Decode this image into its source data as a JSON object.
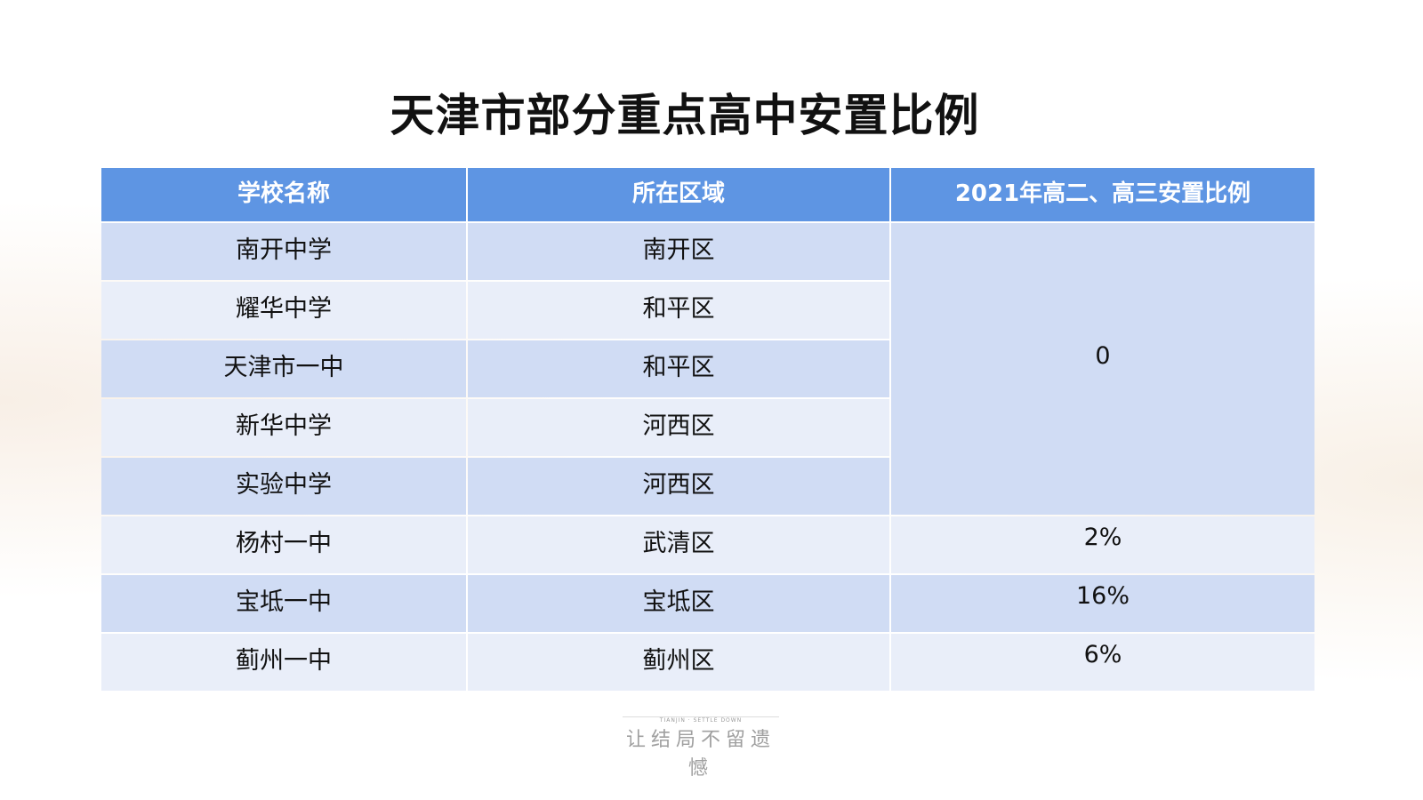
{
  "title": "天津市部分重点高中安置比例",
  "table": {
    "headers": [
      "学校名称",
      "所在区域",
      "2021年高二、高三安置比例"
    ],
    "rows": [
      {
        "school": "南开中学",
        "district": "南开区",
        "ratio": "0"
      },
      {
        "school": "耀华中学",
        "district": "和平区"
      },
      {
        "school": "天津市一中",
        "district": "和平区"
      },
      {
        "school": "新华中学",
        "district": "河西区"
      },
      {
        "school": "实验中学",
        "district": "河西区"
      },
      {
        "school": "杨村一中",
        "district": "武清区",
        "ratio": "2%"
      },
      {
        "school": "宝坻一中",
        "district": "宝坻区",
        "ratio": "16%"
      },
      {
        "school": "蓟州一中",
        "district": "蓟州区",
        "ratio": "6%"
      }
    ]
  },
  "footer": {
    "subtitle": "TIANJIN · SETTLE DOWN",
    "slogan": "让结局不留遗憾"
  },
  "colors": {
    "header": "#5e95e3",
    "row_dark": "#d0dcf4",
    "row_light": "#e9eef9"
  }
}
